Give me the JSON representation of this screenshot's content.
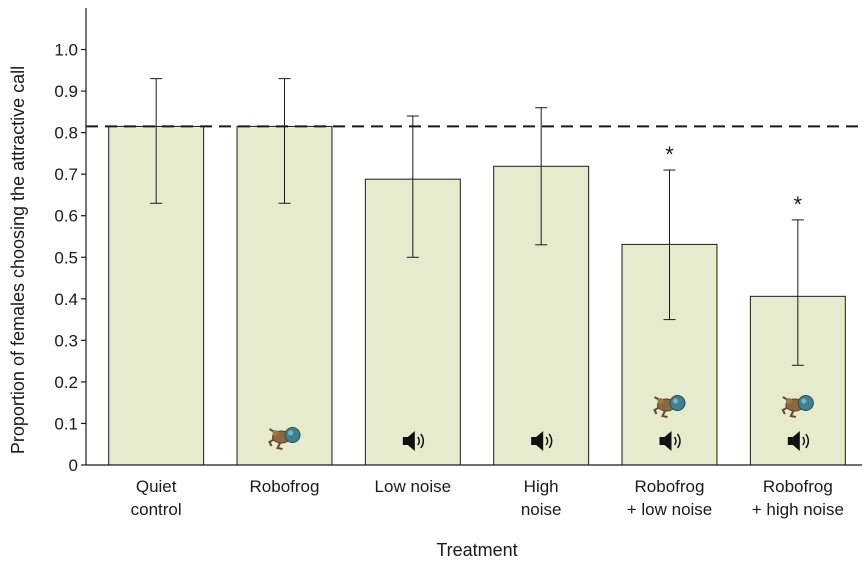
{
  "chart_data": {
    "type": "bar",
    "categories": [
      [
        "Quiet",
        "control"
      ],
      [
        "Robofrog"
      ],
      [
        "Low noise"
      ],
      [
        "High",
        "noise"
      ],
      [
        "Robofrog",
        "+ low noise"
      ],
      [
        "Robofrog",
        "+ high noise"
      ]
    ],
    "values": [
      0.815,
      0.815,
      0.688,
      0.719,
      0.531,
      0.406
    ],
    "error_low": [
      0.63,
      0.63,
      0.5,
      0.53,
      0.35,
      0.24
    ],
    "error_high": [
      0.93,
      0.93,
      0.84,
      0.86,
      0.71,
      0.59
    ],
    "significance": [
      "",
      "",
      "",
      "",
      "*",
      "*"
    ],
    "icons": [
      [],
      [
        "frog-icon"
      ],
      [
        "speaker-icon"
      ],
      [
        "speaker-icon"
      ],
      [
        "frog-icon",
        "speaker-icon"
      ],
      [
        "frog-icon",
        "speaker-icon"
      ]
    ],
    "reference_line": 0.815,
    "ylim": [
      0,
      1.1
    ],
    "yticks": [
      0,
      0.1,
      0.2,
      0.3,
      0.4,
      0.5,
      0.6,
      0.7,
      0.8,
      0.9,
      1.0
    ],
    "ytick_labels": [
      "0",
      "0.1",
      "0.2",
      "0.3",
      "0.4",
      "0.5",
      "0.6",
      "0.7",
      "0.8",
      "0.9",
      "1.0"
    ],
    "xlabel": "Treatment",
    "ylabel": "Proportion of females choosing the attractive call",
    "title": "",
    "bar_color": "#e6ebcd",
    "grid": false
  }
}
